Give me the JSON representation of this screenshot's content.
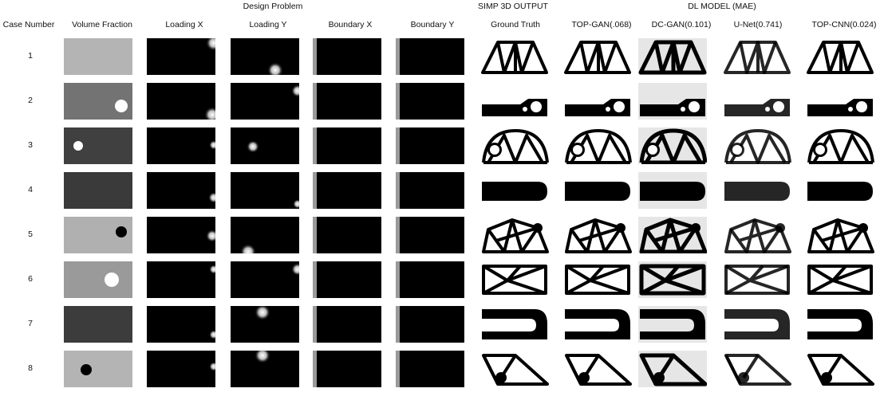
{
  "column_groups": [
    {
      "label": "Design Problem"
    },
    {
      "label": "SIMP 3D OUTPUT"
    },
    {
      "label": "DL MODEL (MAE)"
    }
  ],
  "columns": [
    {
      "label": "Case Number"
    },
    {
      "label": "Volume Fraction"
    },
    {
      "label": "Loading X"
    },
    {
      "label": "Loading Y"
    },
    {
      "label": "Boundary X"
    },
    {
      "label": "Boundary Y"
    },
    {
      "label": "Ground Truth"
    },
    {
      "label": "TOP-GAN(.068)"
    },
    {
      "label": "DC-GAN(0.101)"
    },
    {
      "label": "U-Net(0.741)"
    },
    {
      "label": "TOP-CNN(0.024)"
    }
  ],
  "cases": [
    {
      "number": "1",
      "volume_fraction_shade": "#b4b4b4",
      "hole": "none",
      "structure": "truss-arch"
    },
    {
      "number": "2",
      "volume_fraction_shade": "#737373",
      "hole": "right",
      "structure": "flat-bar-hole"
    },
    {
      "number": "3",
      "volume_fraction_shade": "#404040",
      "hole": "left",
      "structure": "arch-hole"
    },
    {
      "number": "4",
      "volume_fraction_shade": "#3a3a3a",
      "hole": "none",
      "structure": "solid-bar"
    },
    {
      "number": "5",
      "volume_fraction_shade": "#b0b0b0",
      "hole": "right-dark",
      "structure": "truss-arch-hole"
    },
    {
      "number": "6",
      "volume_fraction_shade": "#9a9a9a",
      "hole": "center-right",
      "structure": "cross-truss"
    },
    {
      "number": "7",
      "volume_fraction_shade": "#3c3c3c",
      "hole": "none",
      "structure": "u-channel"
    },
    {
      "number": "8",
      "volume_fraction_shade": "#b4b4b4",
      "hole": "left-dark",
      "structure": "diagonal-frame"
    }
  ]
}
